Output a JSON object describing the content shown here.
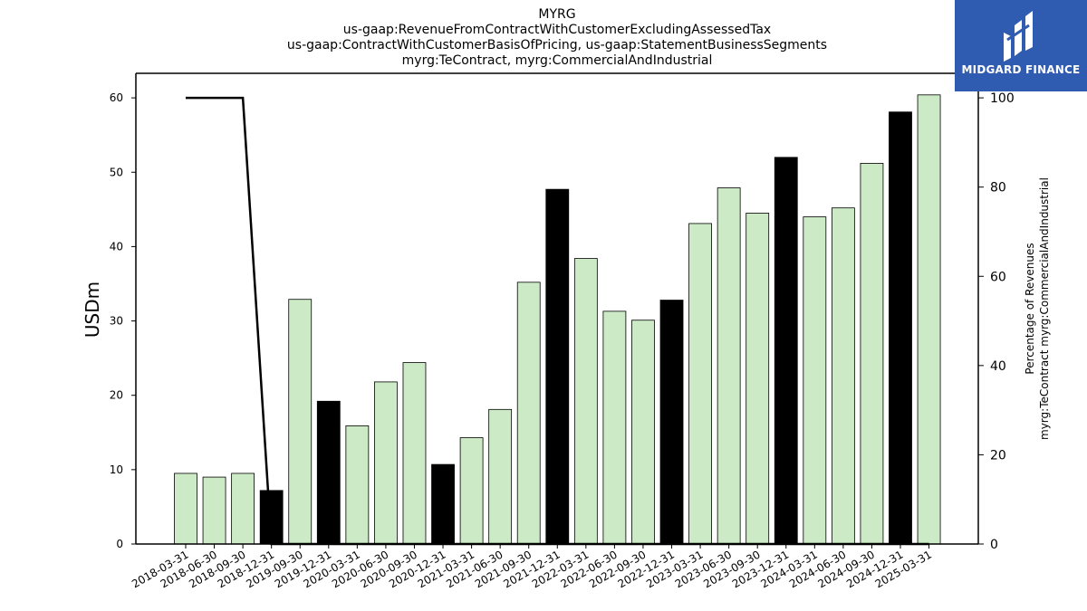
{
  "chart_data": {
    "type": "bar",
    "title_lines": [
      "MYRG",
      "us-gaap:RevenueFromContractWithCustomerExcludingAssessedTax",
      "us-gaap:ContractWithCustomerBasisOfPricing, us-gaap:StatementBusinessSegments",
      "myrg:TeContract, myrg:CommercialAndIndustrial"
    ],
    "ylabel": "USDm",
    "y2label_lines": [
      "Percentage of Revenues",
      "myrg:TeContract myrg:CommercialAndIndustrial"
    ],
    "ylim": [
      0,
      63.3
    ],
    "y2lim": [
      0,
      105.5
    ],
    "yticks": [
      0,
      10,
      20,
      30,
      40,
      50,
      60
    ],
    "y2ticks": [
      0,
      20,
      40,
      60,
      80,
      100
    ],
    "categories": [
      "2018-03-31",
      "2018-06-30",
      "2018-09-30",
      "2018-12-31",
      "2019-09-30",
      "2019-12-31",
      "2020-03-31",
      "2020-06-30",
      "2020-09-30",
      "2020-12-31",
      "2021-03-31",
      "2021-06-30",
      "2021-09-30",
      "2021-12-31",
      "2022-03-31",
      "2022-06-30",
      "2022-09-30",
      "2022-12-31",
      "2023-03-31",
      "2023-06-30",
      "2023-09-30",
      "2023-12-31",
      "2024-03-31",
      "2024-06-30",
      "2024-09-30",
      "2024-12-31",
      "2025-03-31"
    ],
    "values": [
      9.5,
      9.0,
      9.5,
      7.2,
      32.9,
      19.2,
      15.9,
      21.8,
      24.4,
      10.7,
      14.3,
      18.1,
      35.2,
      47.7,
      38.4,
      31.3,
      30.1,
      32.8,
      43.1,
      47.9,
      44.5,
      52.0,
      44.0,
      45.2,
      51.2,
      58.1,
      60.4
    ],
    "highlight": [
      false,
      false,
      false,
      true,
      false,
      true,
      false,
      false,
      false,
      true,
      false,
      false,
      false,
      true,
      false,
      false,
      false,
      true,
      false,
      false,
      false,
      true,
      false,
      false,
      false,
      true,
      false
    ],
    "percentage_series": [
      100,
      100,
      100,
      0,
      0,
      0,
      0,
      0,
      0,
      0,
      0,
      0,
      0,
      0,
      0,
      0,
      0,
      0,
      0,
      0,
      0,
      0,
      0,
      0,
      0,
      0,
      0
    ],
    "bar_color": "#cdeac6",
    "highlight_color": "#000000",
    "line_color": "#000000",
    "grid": false
  },
  "logo": {
    "text": "MIDGARD FINANCE",
    "color": "#2f5bb0"
  }
}
